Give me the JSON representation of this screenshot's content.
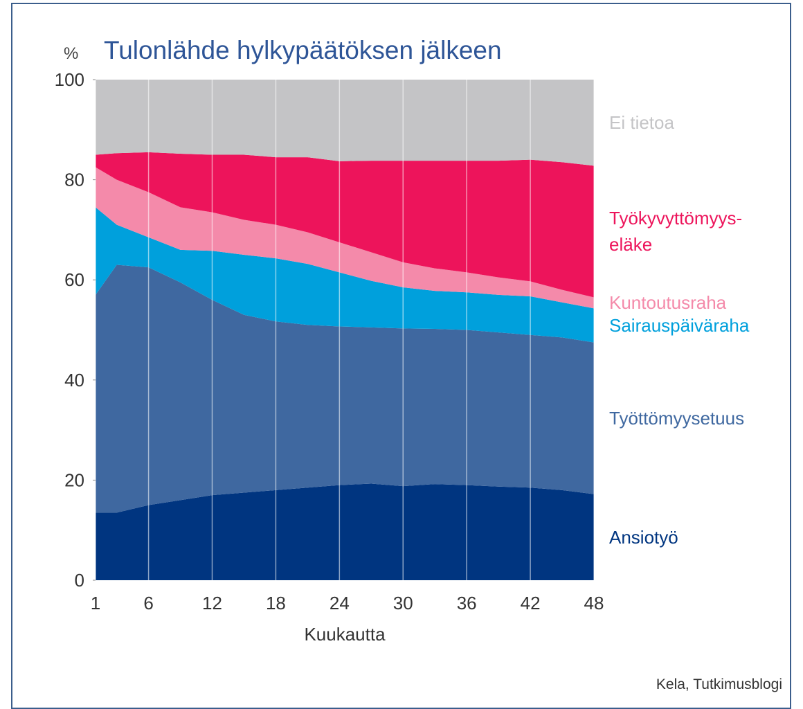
{
  "chart_data": {
    "type": "stacked_area",
    "title": "Tulonlähde hylkypäätöksen jälkeen",
    "y_unit": "%",
    "xlabel": "Kuukautta",
    "source": "Kela, Tutkimusblogi",
    "x": [
      1,
      3,
      6,
      9,
      12,
      15,
      18,
      21,
      24,
      27,
      30,
      33,
      36,
      39,
      42,
      45,
      48
    ],
    "series": [
      {
        "name": "Ansiotyö",
        "color": "#003580",
        "values": [
          13.5,
          13.5,
          15,
          16,
          17,
          17.5,
          18,
          18.5,
          19,
          19.3,
          18.8,
          19.2,
          19,
          18.7,
          18.5,
          18,
          17.2
        ]
      },
      {
        "name": "Työttömyysetuus",
        "color": "#3f68a0",
        "values": [
          43.5,
          49.5,
          47.5,
          43.5,
          39,
          35.5,
          33.7,
          32.5,
          31.7,
          31.2,
          31.5,
          31,
          31,
          30.8,
          30.5,
          30.5,
          30.3
        ]
      },
      {
        "name": "Sairauspäiväraha",
        "color": "#00a0dc",
        "values": [
          17.5,
          8,
          6,
          6.5,
          9.8,
          12,
          12.6,
          12.2,
          10.8,
          9.3,
          8.2,
          7.6,
          7.5,
          7.5,
          7.7,
          7,
          6.8
        ]
      },
      {
        "name": "Kuntoutusraha",
        "color": "#f48aaa",
        "values": [
          8,
          9,
          9,
          8.5,
          7.7,
          7,
          6.7,
          6.3,
          6,
          5.7,
          5,
          4.5,
          4,
          3.5,
          3,
          2.5,
          2.2
        ]
      },
      {
        "name": "Työkyvyttömyys-\neläke",
        "color": "#ed145b",
        "values": [
          2.5,
          5.3,
          8,
          10.7,
          11.5,
          13,
          13.5,
          15,
          16.2,
          18.3,
          20.3,
          21.5,
          22.3,
          23.3,
          24.3,
          25.5,
          26.3
        ]
      },
      {
        "name": "Ei tietoa",
        "color": "#c4c4c6",
        "values": [
          15,
          14.7,
          14.5,
          14.8,
          15,
          15,
          15.5,
          15.5,
          16.3,
          16.2,
          16.2,
          16.2,
          16.2,
          16.2,
          16,
          16.5,
          17.2
        ]
      }
    ],
    "xlim": [
      1,
      48
    ],
    "xticks": [
      1,
      6,
      12,
      18,
      24,
      30,
      36,
      42,
      48
    ],
    "ylim": [
      0,
      100
    ],
    "yticks": [
      0,
      20,
      40,
      60,
      80,
      100
    ],
    "grid": true
  }
}
